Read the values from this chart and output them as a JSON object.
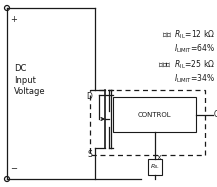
{
  "fig_width": 2.17,
  "fig_height": 1.87,
  "dpi": 100,
  "bg_color": "#ffffff",
  "line_color": "#1a1a1a",
  "label_dc": "DC\nInput\nVoltage",
  "example1_line1": "例如  $R_{\\rm IL}$=12 kΩ",
  "example1_line2": "$I_{\\rm LIMIT}$=64%",
  "example2_line1": "再例如  $R_{\\rm IL}$=25 kΩ",
  "example2_line2": "$I_{\\rm LIMIT}$=34%",
  "lw": 0.9
}
